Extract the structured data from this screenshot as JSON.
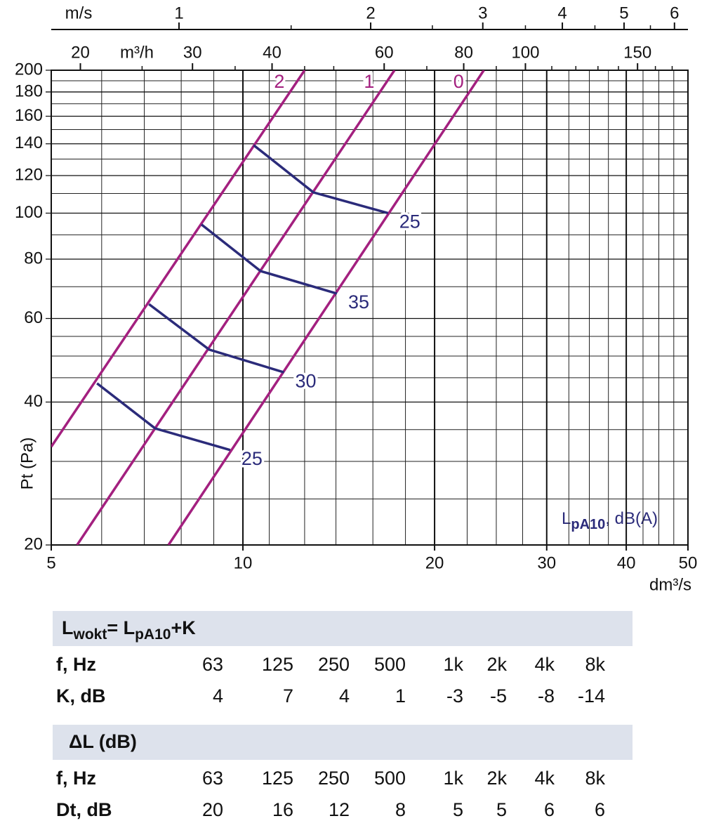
{
  "chart_data": {
    "type": "line",
    "xlog": true,
    "ylog": true,
    "xlabel": "dm³/s",
    "ylabel": "Pt (Pa)",
    "xlim": [
      5,
      50
    ],
    "ylim": [
      20,
      200
    ],
    "xticks": [
      5,
      10,
      20,
      30,
      40,
      50
    ],
    "yticks": [
      20,
      40,
      60,
      80,
      100,
      120,
      140,
      160,
      180,
      200
    ],
    "xgrid_minor": [
      6,
      7,
      8,
      9,
      11,
      12.5,
      14,
      16,
      18,
      22.5,
      25,
      27.5,
      32.5,
      35,
      37.5,
      42.5,
      45,
      47.5
    ],
    "ygrid_minor": [
      25,
      30,
      35,
      45,
      50,
      55,
      70,
      90,
      110,
      130,
      150,
      170,
      190
    ],
    "grid": true,
    "top_axes": [
      {
        "label": "m/s",
        "lim": [
          0.63,
          6.3
        ],
        "ticks": [
          1,
          2,
          3,
          4,
          5,
          6
        ],
        "minor": [
          1.5,
          2.5,
          3.5,
          4.5,
          5.5
        ]
      },
      {
        "label": "m³/h",
        "lim": [
          18,
          180
        ],
        "ticks": [
          20,
          30,
          40,
          60,
          80,
          100,
          150
        ],
        "minor": [
          25,
          35,
          45,
          50,
          70,
          90,
          110,
          120,
          130,
          140,
          160,
          170
        ]
      }
    ],
    "series": [
      {
        "name": "2",
        "color": "#a3207f",
        "x": [
          5,
          12.5
        ],
        "values": [
          32.2,
          200
        ]
      },
      {
        "name": "1",
        "color": "#a3207f",
        "x": [
          5.49,
          17.3
        ],
        "values": [
          20,
          200
        ]
      },
      {
        "name": "0",
        "color": "#a3207f",
        "x": [
          7.64,
          23.9
        ],
        "values": [
          20,
          200
        ]
      },
      {
        "name": "25",
        "color": "#2b2b7a",
        "x": [
          10.4,
          12.9,
          16.9
        ],
        "values": [
          139,
          110.6,
          100
        ]
      },
      {
        "name": "35",
        "color": "#2b2b7a",
        "x": [
          8.61,
          10.66,
          14.05
        ],
        "values": [
          94.6,
          75.5,
          67.7
        ]
      },
      {
        "name": "30",
        "color": "#2b2b7a",
        "x": [
          7.12,
          8.85,
          11.6
        ],
        "values": [
          64.3,
          51.6,
          46.2
        ]
      },
      {
        "name": "25",
        "color": "#2b2b7a",
        "x": [
          5.9,
          7.28,
          9.55
        ],
        "values": [
          43.8,
          35.2,
          31.7
        ]
      }
    ],
    "annotation": [
      "L",
      "pA10",
      ", dB(A)"
    ]
  },
  "tables": [
    {
      "heading": [
        "L",
        "wokt",
        "= L",
        "pA10",
        "+K"
      ],
      "rows": [
        {
          "label": "f, Hz",
          "cells": [
            "63",
            "125",
            "250",
            "500",
            "1k",
            "2k",
            "4k",
            "8k"
          ]
        },
        {
          "label": "K, dB",
          "cells": [
            4,
            7,
            4,
            1,
            -3,
            -5,
            -8,
            -14
          ]
        }
      ]
    },
    {
      "heading": [
        "ΔL (dB)"
      ],
      "rows": [
        {
          "label": "f, Hz",
          "cells": [
            "63",
            "125",
            "250",
            "500",
            "1k",
            "2k",
            "4k",
            "8k"
          ]
        },
        {
          "label": "Dt, dB",
          "cells": [
            20,
            16,
            12,
            8,
            5,
            5,
            6,
            6
          ]
        }
      ]
    }
  ]
}
